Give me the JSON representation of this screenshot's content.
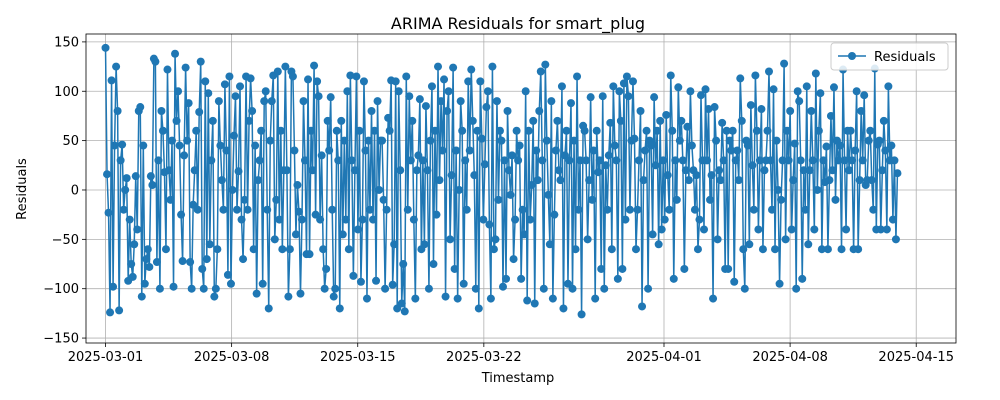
{
  "chart_data": {
    "type": "line",
    "title": "ARIMA Residuals for smart_plug",
    "xlabel": "Timestamp",
    "ylabel": "Residuals",
    "x_ticks": [
      "2025-03-01",
      "2025-03-08",
      "2025-03-15",
      "2025-03-22",
      "2025-04-01",
      "2025-04-08",
      "2025-04-15"
    ],
    "y_ticks": [
      "−150",
      "−100",
      "−50",
      "0",
      "50",
      "100",
      "150"
    ],
    "x_range": [
      "2025-02-27T22:00",
      "2025-04-17T05:00"
    ],
    "ylim": [
      -155,
      158
    ],
    "x_start": "2025-03-01T00:00",
    "x_end": "2025-04-13T23:00",
    "grid": true,
    "legend_position": "top-right",
    "series": [
      {
        "name": "Residuals",
        "color": "#1f77b4",
        "marker": "circle",
        "values": [
          144,
          16,
          -23,
          -124,
          111,
          -98,
          45,
          125,
          80,
          -122,
          30,
          46,
          -20,
          0,
          12,
          -92,
          -30,
          -75,
          -88,
          -55,
          14,
          -40,
          80,
          84,
          -108,
          45,
          -95,
          -70,
          -60,
          -78,
          14,
          5,
          133,
          130,
          -73,
          30,
          -100,
          80,
          60,
          18,
          -60,
          122,
          20,
          -10,
          50,
          -98,
          138,
          70,
          100,
          45,
          -25,
          -72,
          35,
          124,
          50,
          88,
          -73,
          -100,
          -15,
          20,
          60,
          -20,
          79,
          130,
          -80,
          -100,
          110,
          -70,
          98,
          -55,
          30,
          70,
          -108,
          -100,
          -60,
          90,
          45,
          10,
          -20,
          107,
          40,
          -86,
          115,
          -95,
          0,
          55,
          95,
          -20,
          19,
          105,
          -30,
          -70,
          -10,
          115,
          -20,
          70,
          113,
          80,
          -60,
          45,
          -105,
          10,
          30,
          60,
          -95,
          90,
          100,
          -20,
          -120,
          50,
          90,
          116,
          -50,
          -10,
          120,
          -30,
          60,
          -60,
          20,
          125,
          20,
          -108,
          -60,
          120,
          115,
          40,
          -45,
          5,
          -22,
          -105,
          -30,
          90,
          30,
          -65,
          112,
          -65,
          60,
          20,
          126,
          -25,
          110,
          95,
          -30,
          35,
          -60,
          -100,
          -80,
          70,
          40,
          94,
          -20,
          -108,
          -100,
          60,
          30,
          -120,
          70,
          -45,
          50,
          -30,
          100,
          -60,
          116,
          30,
          -87,
          20,
          115,
          -40,
          60,
          -93,
          -30,
          110,
          40,
          -110,
          50,
          -20,
          80,
          -30,
          60,
          -92,
          90,
          0,
          50,
          50,
          -10,
          -100,
          -20,
          73,
          60,
          111,
          -96,
          -55,
          110,
          -120,
          100,
          20,
          -115,
          -75,
          -123,
          115,
          -20,
          95,
          30,
          70,
          -30,
          -110,
          20,
          35,
          92,
          -60,
          30,
          -55,
          85,
          20,
          -100,
          50,
          105,
          -75,
          60,
          -25,
          125,
          10,
          90,
          40,
          112,
          -108,
          80,
          100,
          -50,
          15,
          124,
          -80,
          40,
          -110,
          0,
          90,
          60,
          -95,
          30,
          -20,
          110,
          40,
          122,
          70,
          15,
          -100,
          60,
          -120,
          110,
          52,
          -30,
          26,
          84,
          100,
          -35,
          -110,
          125,
          -60,
          -50,
          90,
          -10,
          60,
          50,
          -98,
          30,
          -90,
          80,
          20,
          -5,
          35,
          -70,
          -30,
          60,
          30,
          45,
          -90,
          -20,
          -45,
          100,
          -112,
          60,
          -30,
          5,
          70,
          -115,
          40,
          10,
          80,
          120,
          30,
          -100,
          127,
          50,
          -5,
          -55,
          90,
          -110,
          -25,
          40,
          70,
          20,
          10,
          105,
          -120,
          35,
          60,
          -95,
          30,
          88,
          -100,
          50,
          -60,
          115,
          -20,
          30,
          -126,
          65,
          60,
          30,
          -50,
          10,
          94,
          -10,
          40,
          -110,
          60,
          18,
          30,
          -80,
          95,
          -100,
          25,
          -20,
          35,
          68,
          -60,
          105,
          45,
          30,
          -90,
          100,
          70,
          -80,
          108,
          -30,
          115,
          95,
          -20,
          50,
          110,
          52,
          -60,
          -20,
          30,
          80,
          -118,
          10,
          40,
          60,
          -100,
          50,
          45,
          -45,
          94,
          25,
          60,
          -55,
          70,
          -40,
          30,
          -30,
          76,
          15,
          -20,
          116,
          60,
          -90,
          30,
          -10,
          104,
          50,
          70,
          30,
          -80,
          20,
          64,
          10,
          100,
          45,
          20,
          -20,
          15,
          -60,
          -30,
          96,
          30,
          -40,
          102,
          30,
          82,
          -10,
          15,
          -110,
          84,
          50,
          -50,
          20,
          10,
          68,
          30,
          -80,
          60,
          -80,
          50,
          40,
          60,
          -93,
          30,
          40,
          10,
          113,
          70,
          -60,
          -100,
          50,
          45,
          -55,
          86,
          25,
          -20,
          116,
          60,
          -40,
          30,
          82,
          -60,
          20,
          30,
          60,
          120,
          30,
          -20,
          102,
          -60,
          50,
          0,
          -95,
          -10,
          30,
          128,
          -50,
          60,
          30,
          80,
          -40,
          10,
          47,
          -100,
          100,
          90,
          30,
          -90,
          20,
          -20,
          105,
          -55,
          20,
          80,
          30,
          -40,
          118,
          0,
          60,
          98,
          -60,
          30,
          8,
          44,
          -60,
          10,
          75,
          20,
          104,
          -10,
          50,
          30,
          45,
          -60,
          122,
          30,
          -40,
          60,
          20,
          60,
          30,
          -60,
          40,
          100,
          -60,
          10,
          80,
          30,
          96,
          5,
          10,
          50,
          60,
          10,
          -20,
          123,
          -40,
          46,
          50,
          -40,
          20,
          70,
          40,
          -40,
          105,
          30,
          45,
          -30,
          30,
          -50,
          17
        ]
      }
    ]
  }
}
